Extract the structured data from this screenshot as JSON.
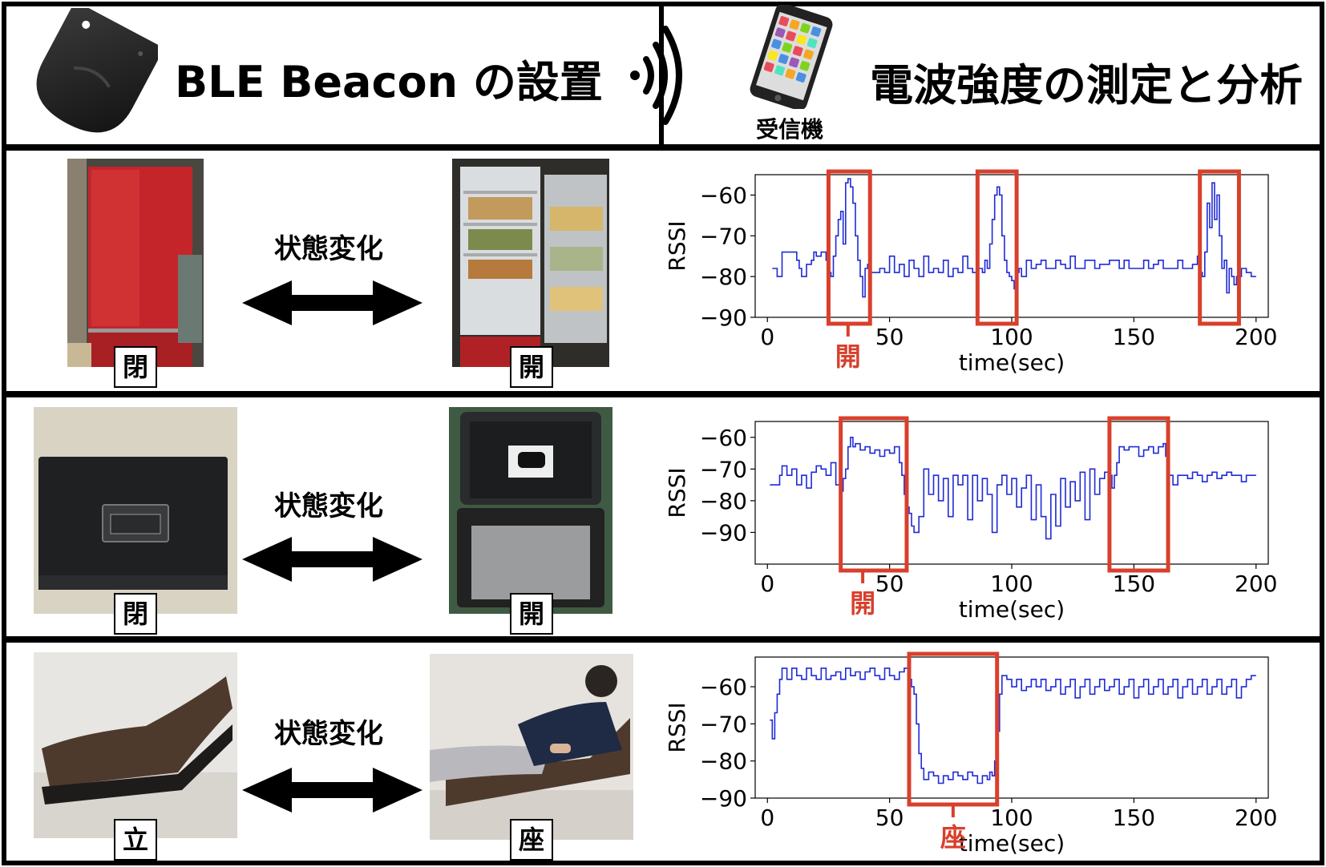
{
  "header": {
    "left_title": "BLE Beacon の設置",
    "right_title": "電波強度の測定と分析",
    "receiver_label": "受信機"
  },
  "rows": [
    {
      "state_change_label": "状態変化",
      "from_tag": "閉",
      "to_tag": "開",
      "event_label": "開"
    },
    {
      "state_change_label": "状態変化",
      "from_tag": "閉",
      "to_tag": "開",
      "event_label": "開"
    },
    {
      "state_change_label": "状態変化",
      "from_tag": "立",
      "to_tag": "座",
      "event_label": "座"
    }
  ],
  "colors": {
    "line": "#1f2bd6",
    "highlight": "#d8402c",
    "fridge_red": "#c4252a"
  },
  "chart_data": [
    {
      "type": "line",
      "xlabel": "time(sec)",
      "ylabel": "RSSI",
      "xlim": [
        -5,
        205
      ],
      "ylim": [
        -90,
        -55
      ],
      "xticks": [
        0,
        50,
        100,
        150,
        200
      ],
      "yticks": [
        -60,
        -70,
        -80,
        -90
      ],
      "series": [
        {
          "x": [
            2,
            4,
            5,
            6,
            8,
            10,
            12,
            13,
            14,
            16,
            18,
            19,
            20,
            22,
            24,
            25,
            26,
            27,
            28,
            29,
            30,
            31,
            32,
            33,
            34,
            35,
            36,
            37,
            38,
            39,
            40,
            41,
            42,
            44,
            46,
            48,
            50,
            52,
            54,
            56,
            58,
            60,
            62,
            64,
            66,
            68,
            70,
            72,
            74,
            76,
            78,
            80,
            82,
            84,
            86,
            88,
            89,
            90,
            91,
            92,
            93,
            94,
            95,
            96,
            97,
            98,
            99,
            100,
            101,
            102,
            103,
            104,
            106,
            108,
            110,
            112,
            114,
            116,
            118,
            120,
            122,
            124,
            126,
            128,
            130,
            132,
            134,
            136,
            138,
            140,
            142,
            144,
            146,
            148,
            150,
            152,
            154,
            156,
            158,
            160,
            162,
            164,
            166,
            168,
            170,
            172,
            174,
            175,
            176,
            177,
            178,
            179,
            180,
            181,
            182,
            183,
            184,
            185,
            186,
            187,
            188,
            189,
            190,
            191,
            192,
            194,
            196,
            198,
            200
          ],
          "values": [
            -78,
            -80,
            -80,
            -74,
            -74,
            -74,
            -76,
            -78,
            -80,
            -77,
            -76,
            -74,
            -75,
            -74,
            -76,
            -79,
            -80,
            -75,
            -70,
            -66,
            -64,
            -72,
            -57,
            -56,
            -58,
            -62,
            -70,
            -76,
            -80,
            -85,
            -78,
            -77,
            -79,
            -79,
            -78,
            -79,
            -75,
            -79,
            -77,
            -80,
            -76,
            -78,
            -80,
            -75,
            -79,
            -78,
            -79,
            -76,
            -80,
            -78,
            -79,
            -75,
            -78,
            -79,
            -78,
            -79,
            -76,
            -78,
            -72,
            -66,
            -60,
            -58,
            -60,
            -70,
            -76,
            -79,
            -80,
            -81,
            -83,
            -79,
            -78,
            -80,
            -76,
            -78,
            -77,
            -76,
            -78,
            -78,
            -76,
            -77,
            -78,
            -75,
            -78,
            -78,
            -76,
            -76,
            -78,
            -77,
            -77,
            -76,
            -76,
            -78,
            -76,
            -78,
            -78,
            -78,
            -76,
            -78,
            -77,
            -76,
            -78,
            -78,
            -78,
            -76,
            -78,
            -78,
            -77,
            -77,
            -75,
            -79,
            -80,
            -74,
            -62,
            -68,
            -57,
            -66,
            -60,
            -70,
            -78,
            -76,
            -84,
            -78,
            -80,
            -82,
            -80,
            -78,
            -79,
            -80,
            -80
          ]
        }
      ],
      "highlights": [
        [
          25,
          42
        ],
        [
          86,
          102
        ],
        [
          177,
          193
        ]
      ],
      "event_x": 33
    },
    {
      "type": "line",
      "xlabel": "time(sec)",
      "ylabel": "RSSI",
      "xlim": [
        -5,
        205
      ],
      "ylim": [
        -100,
        -55
      ],
      "xticks": [
        0,
        50,
        100,
        150,
        200
      ],
      "yticks": [
        -60,
        -70,
        -80,
        -90
      ],
      "series": [
        {
          "x": [
            1,
            3,
            5,
            6,
            8,
            10,
            12,
            14,
            16,
            18,
            20,
            22,
            24,
            26,
            28,
            30,
            31,
            32,
            33,
            34,
            35,
            36,
            38,
            40,
            42,
            44,
            46,
            48,
            50,
            52,
            54,
            55,
            56,
            57,
            58,
            59,
            60,
            62,
            64,
            66,
            68,
            70,
            72,
            74,
            76,
            78,
            80,
            82,
            84,
            86,
            88,
            90,
            92,
            94,
            96,
            98,
            100,
            102,
            104,
            106,
            108,
            110,
            112,
            114,
            116,
            118,
            120,
            122,
            124,
            126,
            128,
            130,
            132,
            134,
            136,
            138,
            140,
            141,
            142,
            143,
            144,
            146,
            148,
            150,
            152,
            154,
            156,
            158,
            160,
            162,
            163,
            164,
            166,
            168,
            170,
            172,
            174,
            176,
            178,
            180,
            182,
            184,
            186,
            188,
            190,
            192,
            194,
            196,
            198,
            200
          ],
          "values": [
            -75,
            -75,
            -72,
            -69,
            -72,
            -70,
            -75,
            -72,
            -76,
            -71,
            -69,
            -70,
            -72,
            -68,
            -75,
            -77,
            -73,
            -70,
            -63,
            -60,
            -63,
            -62,
            -64,
            -63,
            -65,
            -64,
            -66,
            -64,
            -65,
            -63,
            -68,
            -72,
            -78,
            -82,
            -84,
            -88,
            -90,
            -85,
            -70,
            -78,
            -72,
            -80,
            -73,
            -85,
            -72,
            -75,
            -72,
            -86,
            -72,
            -80,
            -73,
            -78,
            -90,
            -75,
            -72,
            -78,
            -73,
            -82,
            -76,
            -72,
            -86,
            -75,
            -85,
            -92,
            -78,
            -88,
            -73,
            -82,
            -74,
            -80,
            -71,
            -86,
            -70,
            -78,
            -73,
            -71,
            -72,
            -76,
            -72,
            -68,
            -63,
            -64,
            -63,
            -63,
            -66,
            -64,
            -63,
            -65,
            -63,
            -62,
            -66,
            -72,
            -75,
            -72,
            -72,
            -73,
            -71,
            -72,
            -74,
            -72,
            -71,
            -73,
            -72,
            -71,
            -72,
            -72,
            -74,
            -72,
            -72,
            -72
          ]
        }
      ],
      "highlights": [
        [
          30,
          57
        ],
        [
          140,
          164
        ]
      ],
      "event_x": 39
    },
    {
      "type": "line",
      "xlabel": "time(sec)",
      "ylabel": "RSSI",
      "xlim": [
        -5,
        205
      ],
      "ylim": [
        -90,
        -52
      ],
      "xticks": [
        0,
        50,
        100,
        150,
        200
      ],
      "yticks": [
        -60,
        -70,
        -80,
        -90
      ],
      "series": [
        {
          "x": [
            1,
            2,
            3,
            4,
            5,
            6,
            8,
            10,
            12,
            14,
            16,
            18,
            20,
            22,
            24,
            26,
            28,
            30,
            32,
            34,
            36,
            38,
            40,
            42,
            44,
            46,
            48,
            50,
            52,
            54,
            56,
            58,
            59,
            60,
            61,
            62,
            63,
            64,
            66,
            68,
            70,
            72,
            74,
            76,
            78,
            80,
            82,
            84,
            86,
            88,
            90,
            91,
            92,
            93,
            94,
            95,
            96,
            98,
            100,
            102,
            104,
            106,
            108,
            110,
            112,
            114,
            116,
            118,
            120,
            122,
            124,
            126,
            128,
            130,
            132,
            134,
            136,
            138,
            140,
            142,
            144,
            146,
            148,
            150,
            152,
            154,
            156,
            158,
            160,
            162,
            164,
            166,
            168,
            170,
            172,
            174,
            176,
            178,
            180,
            182,
            184,
            186,
            188,
            190,
            192,
            194,
            196,
            198,
            200
          ],
          "values": [
            -69,
            -74,
            -67,
            -62,
            -58,
            -55,
            -58,
            -55,
            -57,
            -58,
            -55,
            -57,
            -58,
            -55,
            -58,
            -57,
            -56,
            -58,
            -55,
            -57,
            -56,
            -58,
            -56,
            -55,
            -57,
            -58,
            -55,
            -57,
            -58,
            -56,
            -55,
            -58,
            -60,
            -62,
            -70,
            -78,
            -82,
            -85,
            -83,
            -84,
            -86,
            -84,
            -85,
            -83,
            -84,
            -85,
            -83,
            -84,
            -86,
            -84,
            -85,
            -83,
            -84,
            -80,
            -72,
            -62,
            -57,
            -58,
            -60,
            -58,
            -61,
            -60,
            -58,
            -60,
            -58,
            -61,
            -60,
            -58,
            -62,
            -60,
            -58,
            -63,
            -60,
            -58,
            -62,
            -60,
            -58,
            -61,
            -60,
            -58,
            -62,
            -60,
            -58,
            -63,
            -60,
            -58,
            -62,
            -60,
            -58,
            -62,
            -60,
            -58,
            -63,
            -60,
            -58,
            -62,
            -60,
            -58,
            -62,
            -60,
            -58,
            -62,
            -60,
            -58,
            -63,
            -60,
            -58,
            -57,
            -57
          ]
        }
      ],
      "highlights": [
        [
          58,
          94
        ]
      ],
      "event_x": 76
    }
  ]
}
